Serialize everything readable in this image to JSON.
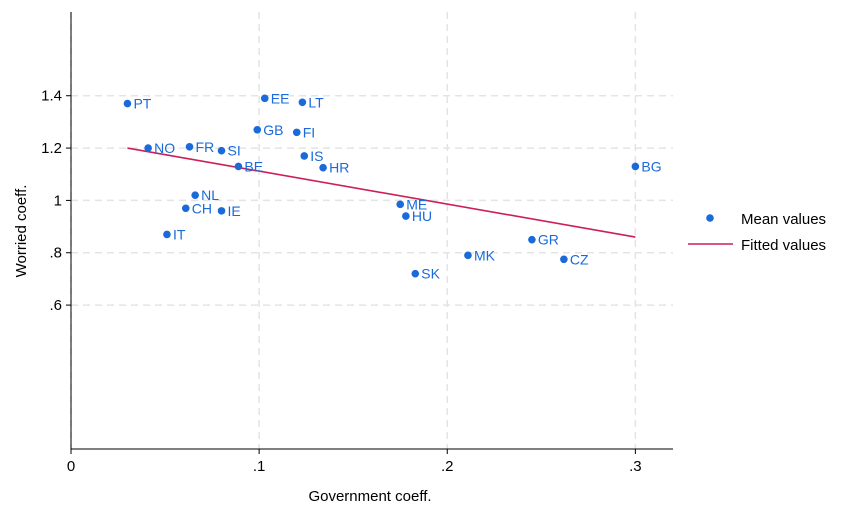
{
  "chart_data": {
    "type": "scatter",
    "xlabel": "Government coeff.",
    "ylabel": "Worried coeff.",
    "xlim": [
      0,
      0.32
    ],
    "ylim": [
      0.05,
      1.72
    ],
    "xticks": [
      {
        "value": 0,
        "label": "0"
      },
      {
        "value": 0.1,
        "label": ".1"
      },
      {
        "value": 0.2,
        "label": ".2"
      },
      {
        "value": 0.3,
        "label": ".3"
      }
    ],
    "yticks": [
      {
        "value": 0.6,
        "label": ".6"
      },
      {
        "value": 0.8,
        "label": ".8"
      },
      {
        "value": 1.0,
        "label": "1"
      },
      {
        "value": 1.2,
        "label": "1.2"
      },
      {
        "value": 1.4,
        "label": "1.4"
      }
    ],
    "grid": true,
    "legend": "right",
    "series": [
      {
        "name": "Mean values",
        "type": "scatter",
        "color": "#1a6ad9",
        "points": [
          {
            "label": "PT",
            "x": 0.03,
            "y": 1.37
          },
          {
            "label": "NO",
            "x": 0.041,
            "y": 1.2
          },
          {
            "label": "FR",
            "x": 0.063,
            "y": 1.205
          },
          {
            "label": "SI",
            "x": 0.08,
            "y": 1.19
          },
          {
            "label": "BE",
            "x": 0.089,
            "y": 1.13
          },
          {
            "label": "NL",
            "x": 0.066,
            "y": 1.02
          },
          {
            "label": "CH",
            "x": 0.061,
            "y": 0.97
          },
          {
            "label": "IE",
            "x": 0.08,
            "y": 0.96
          },
          {
            "label": "IT",
            "x": 0.051,
            "y": 0.87
          },
          {
            "label": "EE",
            "x": 0.103,
            "y": 1.39
          },
          {
            "label": "LT",
            "x": 0.123,
            "y": 1.375
          },
          {
            "label": "GB",
            "x": 0.099,
            "y": 1.27
          },
          {
            "label": "FI",
            "x": 0.12,
            "y": 1.26
          },
          {
            "label": "IS",
            "x": 0.124,
            "y": 1.17
          },
          {
            "label": "HR",
            "x": 0.134,
            "y": 1.125
          },
          {
            "label": "ME",
            "x": 0.175,
            "y": 0.985
          },
          {
            "label": "HU",
            "x": 0.178,
            "y": 0.94
          },
          {
            "label": "SK",
            "x": 0.183,
            "y": 0.72
          },
          {
            "label": "MK",
            "x": 0.211,
            "y": 0.79
          },
          {
            "label": "GR",
            "x": 0.245,
            "y": 0.85
          },
          {
            "label": "CZ",
            "x": 0.262,
            "y": 0.775
          },
          {
            "label": "BG",
            "x": 0.3,
            "y": 1.13
          }
        ]
      },
      {
        "name": "Fitted values",
        "type": "line",
        "color": "#cc1f5a",
        "x": [
          0.03,
          0.3
        ],
        "y": [
          1.2,
          0.86
        ]
      }
    ]
  }
}
